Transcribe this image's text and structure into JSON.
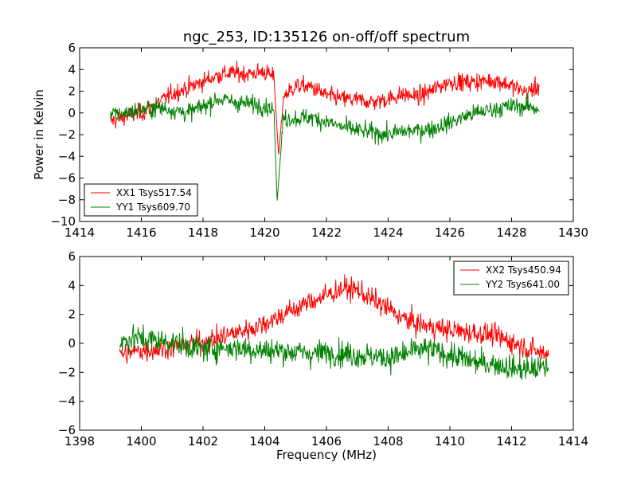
{
  "title": "ngc_253, ID:135126 on-off/off spectrum",
  "colors": {
    "xx": "#ff0000",
    "yy": "#008000"
  },
  "chart_data": [
    {
      "type": "line",
      "title": "ngc_253, ID:135126 on-off/off spectrum",
      "xlabel": "",
      "ylabel": "Power in Kelvin",
      "xlim": [
        1414,
        1430
      ],
      "ylim": [
        -10,
        6
      ],
      "xticks": [
        "1414",
        "1416",
        "1418",
        "1420",
        "1422",
        "1424",
        "1426",
        "1428",
        "1430"
      ],
      "yticks": [
        "6",
        "4",
        "2",
        "0",
        "−2",
        "−4",
        "−6",
        "−8",
        "−10"
      ],
      "grid": false,
      "legend_position": "lower-left",
      "series": [
        {
          "name": "XX1 Tsys517.54",
          "color": "#ff0000",
          "x": [
            1415.0,
            1415.5,
            1416.0,
            1416.5,
            1417.0,
            1417.5,
            1418.0,
            1418.5,
            1419.0,
            1419.5,
            1420.0,
            1420.3,
            1420.45,
            1420.6,
            1421.0,
            1421.5,
            1422.0,
            1422.5,
            1423.0,
            1423.5,
            1424.0,
            1424.5,
            1425.0,
            1425.5,
            1426.0,
            1426.5,
            1427.0,
            1427.5,
            1428.0,
            1428.5,
            1428.9
          ],
          "values": [
            -0.8,
            -0.3,
            0.0,
            0.8,
            1.8,
            2.3,
            2.9,
            3.5,
            3.7,
            3.6,
            3.8,
            3.2,
            -4.0,
            1.5,
            2.5,
            2.4,
            1.6,
            1.3,
            1.2,
            1.0,
            1.3,
            1.7,
            1.5,
            2.2,
            2.9,
            2.8,
            2.9,
            3.0,
            2.5,
            1.9,
            2.5
          ]
        },
        {
          "name": "YY1 Tsys609.70",
          "color": "#008000",
          "x": [
            1415.0,
            1415.5,
            1416.0,
            1416.5,
            1417.0,
            1417.5,
            1418.0,
            1418.5,
            1419.0,
            1419.5,
            1420.0,
            1420.3,
            1420.4,
            1420.6,
            1421.0,
            1421.5,
            1422.0,
            1422.5,
            1423.0,
            1423.5,
            1424.0,
            1424.5,
            1425.0,
            1425.5,
            1426.0,
            1426.5,
            1427.0,
            1427.5,
            1428.0,
            1428.5,
            1428.9
          ],
          "values": [
            -0.2,
            0.0,
            0.3,
            0.5,
            0.3,
            0.0,
            0.6,
            1.3,
            1.0,
            0.8,
            0.7,
            0.3,
            -8.2,
            -0.5,
            -0.5,
            -0.4,
            -0.8,
            -1.3,
            -1.6,
            -1.8,
            -2.0,
            -1.7,
            -1.6,
            -1.4,
            -0.9,
            -0.3,
            0.1,
            0.4,
            0.6,
            0.6,
            0.4
          ]
        }
      ]
    },
    {
      "type": "line",
      "title": "",
      "xlabel": "Frequency (MHz)",
      "ylabel": "",
      "xlim": [
        1398,
        1414
      ],
      "ylim": [
        -6,
        6
      ],
      "xticks": [
        "1398",
        "1400",
        "1402",
        "1404",
        "1406",
        "1408",
        "1410",
        "1412",
        "1414"
      ],
      "yticks": [
        "6",
        "4",
        "2",
        "0",
        "−2",
        "−4",
        "−6"
      ],
      "grid": false,
      "legend_position": "upper-right",
      "series": [
        {
          "name": "XX2 Tsys450.94",
          "color": "#ff0000",
          "x": [
            1399.3,
            1399.7,
            1400.0,
            1400.5,
            1401.0,
            1401.5,
            1402.0,
            1402.5,
            1403.0,
            1403.5,
            1404.0,
            1404.5,
            1405.0,
            1405.5,
            1406.0,
            1406.5,
            1407.0,
            1407.5,
            1408.0,
            1408.5,
            1409.0,
            1409.5,
            1410.0,
            1410.5,
            1411.0,
            1411.5,
            1412.0,
            1412.5,
            1413.0,
            1413.2
          ],
          "values": [
            -0.8,
            -0.6,
            -0.5,
            -0.4,
            -0.3,
            -0.1,
            0.1,
            0.4,
            0.7,
            1.0,
            1.4,
            1.9,
            2.4,
            2.9,
            3.3,
            3.8,
            3.7,
            3.0,
            2.4,
            1.7,
            1.3,
            1.1,
            0.9,
            0.8,
            0.7,
            0.5,
            0.1,
            -0.3,
            -0.7,
            -0.6
          ]
        },
        {
          "name": "YY2 Tsys641.00",
          "color": "#008000",
          "x": [
            1399.3,
            1399.7,
            1400.0,
            1400.5,
            1401.0,
            1401.5,
            1402.0,
            1402.5,
            1403.0,
            1403.5,
            1404.0,
            1404.5,
            1405.0,
            1405.5,
            1406.0,
            1406.5,
            1407.0,
            1407.5,
            1408.0,
            1408.5,
            1409.0,
            1409.5,
            1410.0,
            1410.5,
            1411.0,
            1411.5,
            1412.0,
            1412.5,
            1413.0,
            1413.2
          ],
          "values": [
            0.0,
            0.4,
            0.3,
            0.2,
            0.1,
            -0.2,
            -0.4,
            -0.3,
            -0.3,
            -0.4,
            -0.5,
            -0.5,
            -0.6,
            -0.7,
            -0.6,
            -0.7,
            -0.8,
            -0.9,
            -1.0,
            -0.8,
            -0.4,
            -0.5,
            -0.8,
            -1.1,
            -1.4,
            -1.4,
            -1.7,
            -1.8,
            -1.7,
            -1.6
          ]
        }
      ]
    }
  ]
}
